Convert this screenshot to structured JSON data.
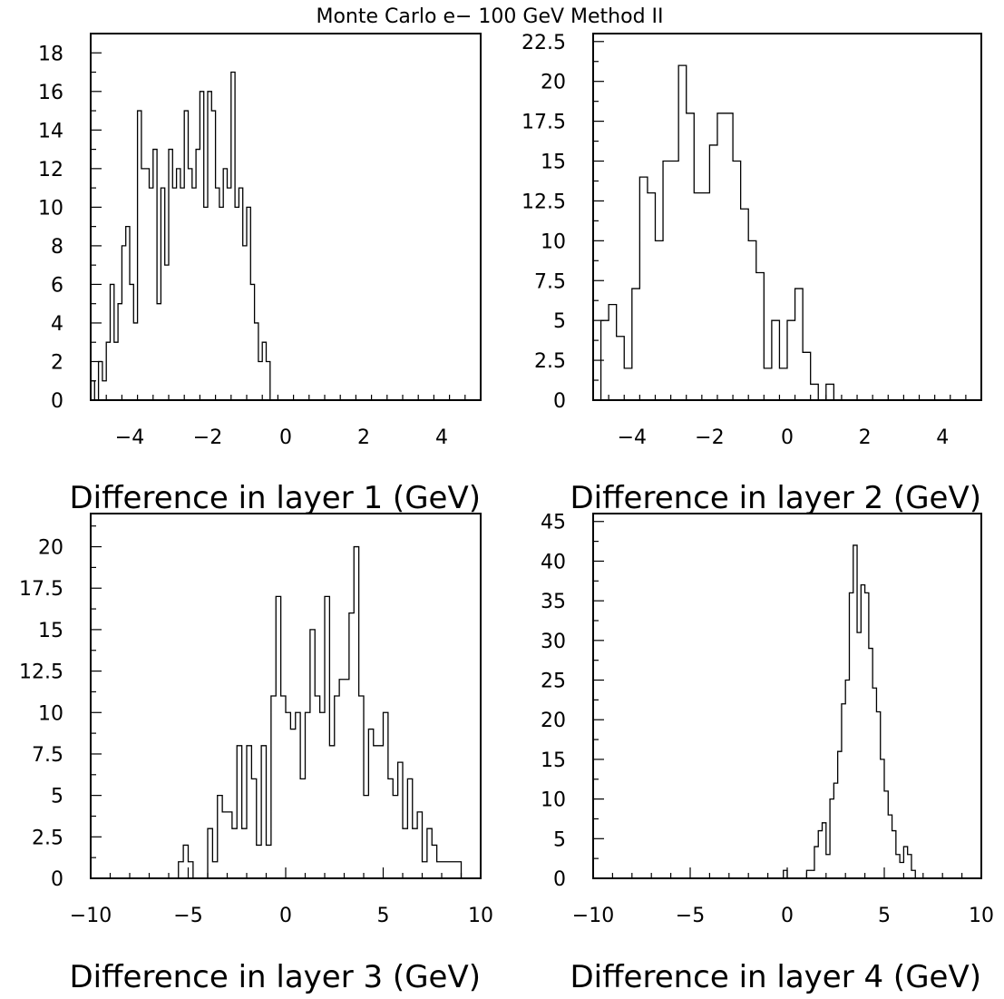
{
  "title": "Monte Carlo e− 100 GeV Method II",
  "chart_data": [
    {
      "type": "bar",
      "style": "step-histogram",
      "xlabel": "Difference in layer 1 (GeV)",
      "ylabel": "",
      "xlim": [
        -5,
        5
      ],
      "ylim": [
        0,
        19
      ],
      "xticks": [
        -4,
        -2,
        0,
        2,
        4
      ],
      "xtick_labels": [
        "−4",
        "−2",
        "0",
        "2",
        "4"
      ],
      "yticks": [
        0,
        2,
        4,
        6,
        8,
        10,
        12,
        14,
        16,
        18
      ],
      "ytick_labels": [
        "0",
        "2",
        "4",
        "6",
        "8",
        "10",
        "12",
        "14",
        "16",
        "18"
      ],
      "bin_width": 0.1,
      "bins_start": -5.0,
      "values": [
        1,
        0,
        2,
        1,
        3,
        6,
        3,
        5,
        8,
        9,
        6,
        4,
        15,
        12,
        12,
        11,
        13,
        5,
        11,
        7,
        13,
        11,
        12,
        11,
        15,
        12,
        11,
        13,
        16,
        10,
        16,
        15,
        11,
        10,
        12,
        11,
        17,
        10,
        11,
        8,
        10,
        6,
        4,
        2,
        3,
        2,
        0,
        0,
        0,
        0,
        0,
        0,
        0,
        0,
        0,
        0,
        0,
        0,
        0,
        0,
        0,
        0,
        0,
        0,
        0,
        0,
        0,
        0,
        0,
        0,
        0,
        0,
        0,
        0,
        0,
        0,
        0,
        0,
        0,
        0,
        0,
        0,
        0,
        0,
        0,
        0,
        0,
        0,
        0,
        0,
        0,
        0,
        0,
        0,
        0,
        0,
        0,
        0,
        0,
        0
      ]
    },
    {
      "type": "bar",
      "style": "step-histogram",
      "xlabel": "Difference in layer 2 (GeV)",
      "ylabel": "",
      "xlim": [
        -5,
        5
      ],
      "ylim": [
        0,
        23.0
      ],
      "xticks": [
        -4,
        -2,
        0,
        2,
        4
      ],
      "xtick_labels": [
        "−4",
        "−2",
        "0",
        "2",
        "4"
      ],
      "yticks": [
        0,
        2.5,
        5,
        7.5,
        10,
        12.5,
        15,
        17.5,
        20,
        22.5
      ],
      "ytick_labels": [
        "0",
        "2.5",
        "5",
        "7.5",
        "10",
        "12.5",
        "15",
        "17.5",
        "20",
        "22.5"
      ],
      "bin_width": 0.2,
      "bins_start": -5.0,
      "values": [
        0,
        5,
        6,
        4,
        2,
        7,
        14,
        13,
        10,
        15,
        15,
        21,
        18,
        13,
        13,
        16,
        18,
        18,
        15,
        12,
        10,
        8,
        2,
        5,
        2,
        5,
        7,
        3,
        1,
        0,
        1,
        0,
        0,
        0,
        0,
        0,
        0,
        0,
        0,
        0,
        0,
        0,
        0,
        0,
        0,
        0,
        0,
        0,
        0,
        0
      ]
    },
    {
      "type": "bar",
      "style": "step-histogram",
      "xlabel": "Difference in layer 3 (GeV)",
      "ylabel": "",
      "xlim": [
        -10,
        10
      ],
      "ylim": [
        0,
        22.0
      ],
      "xticks": [
        -10,
        -5,
        0,
        5,
        10
      ],
      "xtick_labels": [
        "−10",
        "−5",
        "0",
        "5",
        "10"
      ],
      "yticks": [
        0,
        2.5,
        5,
        7.5,
        10,
        12.5,
        15,
        17.5,
        20
      ],
      "ytick_labels": [
        "0",
        "2.5",
        "5",
        "7.5",
        "10",
        "12.5",
        "15",
        "17.5",
        "20"
      ],
      "bin_width": 0.25,
      "bins_start": -10.0,
      "values": [
        0,
        0,
        0,
        0,
        0,
        0,
        0,
        0,
        0,
        0,
        0,
        0,
        0,
        0,
        0,
        0,
        0,
        0,
        1,
        2,
        1,
        0,
        0,
        0,
        3,
        1,
        5,
        4,
        4,
        3,
        8,
        3,
        8,
        6,
        2,
        8,
        2,
        11,
        17,
        11,
        10,
        9,
        10,
        6,
        10,
        15,
        11,
        10,
        17,
        8,
        11,
        12,
        12,
        16,
        20,
        11,
        5,
        9,
        8,
        8,
        10,
        6,
        5,
        7,
        3,
        6,
        3,
        4,
        1,
        3,
        2,
        1,
        1,
        1,
        1,
        1,
        0,
        0,
        0,
        0
      ]
    },
    {
      "type": "bar",
      "style": "step-histogram",
      "xlabel": "Difference in layer 4 (GeV)",
      "ylabel": "",
      "xlim": [
        -10,
        10
      ],
      "ylim": [
        0,
        46.0
      ],
      "xticks": [
        -10,
        -5,
        0,
        5,
        10
      ],
      "xtick_labels": [
        "−10",
        "−5",
        "0",
        "5",
        "10"
      ],
      "yticks": [
        0,
        5,
        10,
        15,
        20,
        25,
        30,
        35,
        40,
        45
      ],
      "ytick_labels": [
        "0",
        "5",
        "10",
        "15",
        "20",
        "25",
        "30",
        "35",
        "40",
        "45"
      ],
      "bin_width": 0.2,
      "bins_start": -10.0,
      "values": [
        0,
        0,
        0,
        0,
        0,
        0,
        0,
        0,
        0,
        0,
        0,
        0,
        0,
        0,
        0,
        0,
        0,
        0,
        0,
        0,
        0,
        0,
        0,
        0,
        0,
        0,
        0,
        0,
        0,
        0,
        0,
        0,
        0,
        0,
        0,
        0,
        0,
        0,
        0,
        0,
        0,
        0,
        0,
        0,
        0,
        0,
        0,
        0,
        0,
        1,
        0,
        0,
        0,
        0,
        0,
        1,
        1,
        4,
        6,
        7,
        3,
        10,
        12,
        16,
        22,
        25,
        36,
        42,
        31,
        37,
        36,
        29,
        24,
        21,
        15,
        11,
        8,
        6,
        3,
        2,
        4,
        3,
        1,
        0,
        0,
        0,
        0,
        0,
        0,
        0,
        0,
        0,
        0,
        0,
        0,
        0,
        0,
        0,
        0,
        0
      ]
    }
  ]
}
